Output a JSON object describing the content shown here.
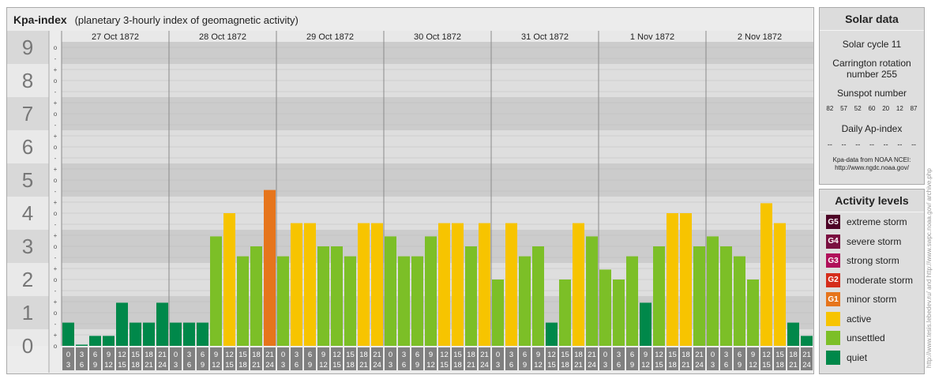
{
  "title": "Kpa-index",
  "subtitle": "(planetary 3-hourly index of geomagnetic activity)",
  "solar": {
    "title": "Solar data",
    "cycle": "Solar cycle 11",
    "carrington": "Carrington rotation number 255",
    "sunspot_title": "Sunspot number",
    "sunspot_values": [
      "82",
      "57",
      "52",
      "60",
      "20",
      "12",
      "87"
    ],
    "ap_title": "Daily Ap-index",
    "ap_values": [
      "--",
      "--",
      "--",
      "--",
      "--",
      "--",
      "--"
    ],
    "source_line1": "Kpa-data from NOAA NCEI:",
    "source_line2": "http://www.ngdc.noaa.gov/"
  },
  "levels": {
    "title": "Activity levels",
    "items": [
      {
        "badge": "G5",
        "label": "extreme storm",
        "color": "#4d0026"
      },
      {
        "badge": "G4",
        "label": "severe storm",
        "color": "#7a1040"
      },
      {
        "badge": "G3",
        "label": "strong storm",
        "color": "#b0105a"
      },
      {
        "badge": "G2",
        "label": "moderate storm",
        "color": "#d52d1b"
      },
      {
        "badge": "G1",
        "label": "minor storm",
        "color": "#e6751c"
      },
      {
        "badge": "",
        "label": "active",
        "color": "#f7c400"
      },
      {
        "badge": "",
        "label": "unsettled",
        "color": "#7cbf27"
      },
      {
        "badge": "",
        "label": "quiet",
        "color": "#00884a"
      }
    ]
  },
  "credit": "http://www.tesis.lebedev.ru/ and http://www.swpc.noaa.gov/ archive.php",
  "chart_data": {
    "type": "bar",
    "title": "Kpa-index",
    "subtitle": "(planetary 3-hourly index of geomagnetic activity)",
    "ylim": [
      0,
      9
    ],
    "y_ticks": [
      "0",
      "1",
      "2",
      "3",
      "4",
      "5",
      "6",
      "7",
      "8",
      "9"
    ],
    "y_subticks": [
      "-",
      "o",
      "+"
    ],
    "days": [
      "27 Oct 1872",
      "28 Oct 1872",
      "29 Oct 1872",
      "30 Oct 1872",
      "31 Oct 1872",
      "1 Nov 1872",
      "2 Nov 1872"
    ],
    "interval_start": [
      "0",
      "3",
      "6",
      "9",
      "12",
      "15",
      "18",
      "21"
    ],
    "interval_end": [
      "3",
      "6",
      "9",
      "12",
      "15",
      "18",
      "21",
      "24"
    ],
    "values": [
      [
        0.7,
        0.0,
        0.3,
        0.3,
        1.3,
        0.7,
        0.7,
        1.3
      ],
      [
        0.7,
        0.7,
        0.7,
        3.3,
        4.0,
        2.7,
        3.0,
        4.7
      ],
      [
        2.7,
        3.7,
        3.7,
        3.0,
        3.0,
        2.7,
        3.7,
        3.7
      ],
      [
        3.3,
        2.7,
        2.7,
        3.3,
        3.7,
        3.7,
        3.0,
        3.7
      ],
      [
        2.0,
        3.7,
        2.7,
        3.0,
        0.7,
        2.0,
        3.7,
        3.3
      ],
      [
        2.3,
        2.0,
        2.7,
        1.3,
        3.0,
        4.0,
        4.0,
        3.0
      ],
      [
        3.3,
        3.0,
        2.7,
        2.0,
        4.3,
        3.7,
        0.7,
        0.3
      ]
    ],
    "colors": {
      "quiet": "#00884a",
      "unsettled": "#7cbf27",
      "active": "#f7c400",
      "minor_storm": "#e6751c"
    }
  }
}
